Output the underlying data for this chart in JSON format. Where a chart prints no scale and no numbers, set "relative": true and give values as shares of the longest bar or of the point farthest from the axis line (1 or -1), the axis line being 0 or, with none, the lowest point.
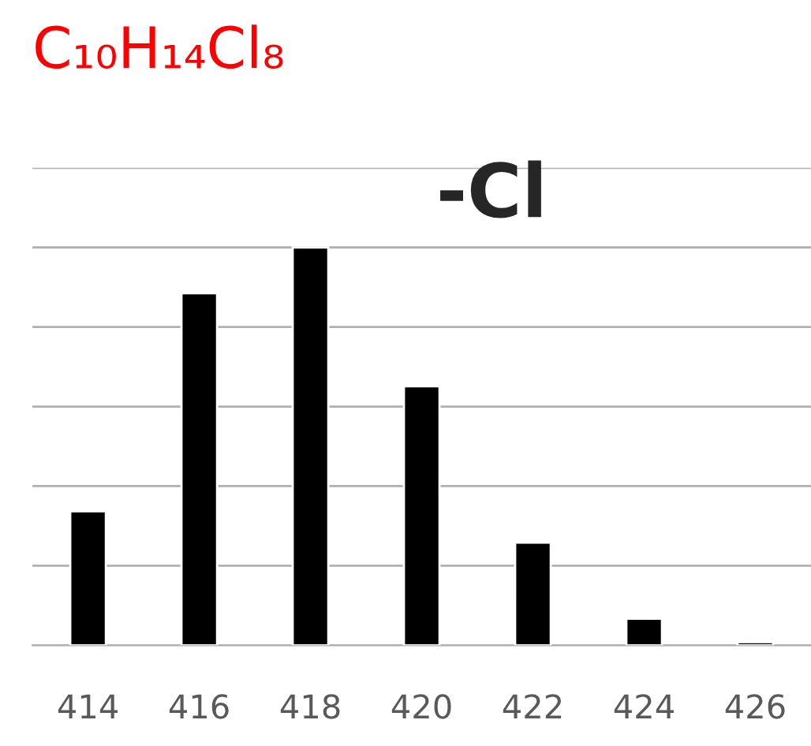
{
  "chart_data": {
    "type": "bar",
    "title": "C₁₀H₁₄Cl₈",
    "relative": true,
    "grid": "y",
    "color": "#000000",
    "categories": [
      "414",
      "416",
      "418",
      "420",
      "422",
      "424",
      "426"
    ],
    "values": [
      0.337,
      0.885,
      1,
      0.651,
      0.258,
      0.067,
      0.008
    ],
    "annotations": [
      "-Cl"
    ]
  }
}
